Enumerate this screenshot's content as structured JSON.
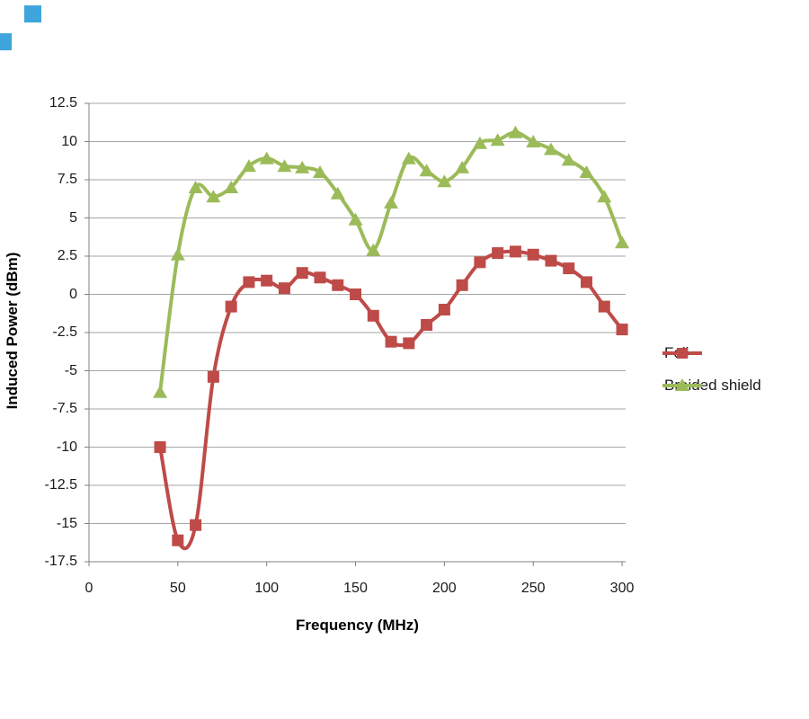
{
  "artifacts": {
    "selection_handle_color": "#3EA6DC"
  },
  "chart_data": {
    "type": "line",
    "title": "",
    "xlabel": "Frequency (MHz)",
    "ylabel": "Induced Power (dBm)",
    "x": [
      40,
      50,
      60,
      70,
      80,
      90,
      100,
      110,
      120,
      130,
      140,
      150,
      160,
      170,
      180,
      190,
      200,
      210,
      220,
      230,
      240,
      250,
      260,
      270,
      280,
      290,
      300
    ],
    "series": [
      {
        "name": "Foil",
        "color": "#BE4B48",
        "marker": "square",
        "values": [
          -10.0,
          -16.1,
          -15.1,
          -5.4,
          -0.8,
          0.8,
          0.9,
          0.4,
          1.4,
          1.1,
          0.6,
          0.0,
          -1.4,
          -3.1,
          -3.2,
          -2.0,
          -1.0,
          0.6,
          2.1,
          2.7,
          2.8,
          2.6,
          2.2,
          1.7,
          0.8,
          -0.8,
          -2.3
        ]
      },
      {
        "name": "Braided shield",
        "color": "#9BBB59",
        "marker": "triangle",
        "values": [
          -6.4,
          2.6,
          7.0,
          6.4,
          7.0,
          8.4,
          8.9,
          8.4,
          8.3,
          8.0,
          6.6,
          4.9,
          2.9,
          6.0,
          8.9,
          8.1,
          7.4,
          8.3,
          9.9,
          10.1,
          10.6,
          10.0,
          9.5,
          8.8,
          8.0,
          6.4,
          3.4
        ]
      }
    ],
    "xlim": [
      0,
      302
    ],
    "ylim": [
      -17.5,
      12.5
    ],
    "x_ticks": [
      "0",
      "50",
      "100",
      "150",
      "200",
      "250",
      "300"
    ],
    "y_ticks": [
      "12.5",
      "10",
      "7.5",
      "5",
      "2.5",
      "0",
      "-2.5",
      "-5",
      "-7.5",
      "-10",
      "-12.5",
      "-15",
      "-17.5"
    ],
    "grid": "horizontal",
    "legend_position": "right",
    "gridline_color": "#A6A6A6",
    "axis_color": "#808080",
    "smoothed_lines": true
  }
}
